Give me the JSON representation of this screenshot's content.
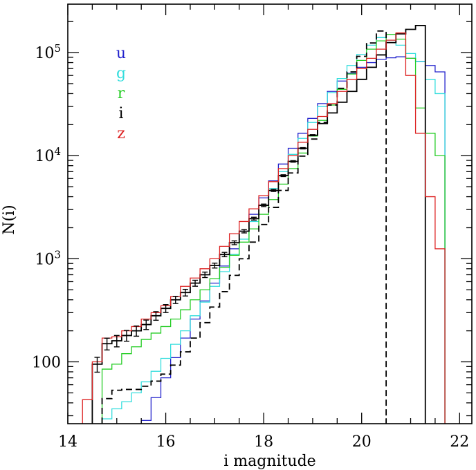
{
  "chart_data": {
    "type": "line",
    "step": true,
    "title": "",
    "xlabel": "i magnitude",
    "ylabel": "N(i)",
    "xlim": [
      14,
      22.25
    ],
    "ylim_log10": [
      1.4,
      5.47
    ],
    "y_scale": "log",
    "x_ticks": [
      {
        "value": 14,
        "label": "14"
      },
      {
        "value": 16,
        "label": "16"
      },
      {
        "value": 18,
        "label": "18"
      },
      {
        "value": 20,
        "label": "20"
      },
      {
        "value": 22,
        "label": "22"
      }
    ],
    "y_ticks": [
      {
        "value": 100,
        "label": "100",
        "exp": ""
      },
      {
        "value": 1000,
        "label": "10",
        "exp": "3"
      },
      {
        "value": 10000,
        "label": "10",
        "exp": "4"
      },
      {
        "value": 100000,
        "label": "10",
        "exp": "5"
      }
    ],
    "bin_width": 0.2,
    "bin_start": 14.3,
    "legend": [
      {
        "label": "u",
        "color": "#2222cc"
      },
      {
        "label": "g",
        "color": "#33dddd"
      },
      {
        "label": "r",
        "color": "#22cc22"
      },
      {
        "label": "i",
        "color": "#000000"
      },
      {
        "label": "z",
        "color": "#dd2222"
      }
    ],
    "series": [
      {
        "name": "u",
        "color": "#2222cc",
        "dash": false,
        "values": [
          null,
          null,
          null,
          null,
          20,
          24,
          27,
          45,
          70,
          110,
          170,
          260,
          390,
          580,
          850,
          1250,
          1850,
          2700,
          3900,
          5700,
          8300,
          11800,
          16500,
          23000,
          32000,
          42000,
          53000,
          63000,
          72000,
          80000,
          86000,
          89000,
          91000,
          88000,
          82000,
          75000,
          65000
        ]
      },
      {
        "name": "g",
        "color": "#33dddd",
        "dash": false,
        "values": [
          null,
          null,
          28,
          35,
          41,
          50,
          64,
          81,
          108,
          148,
          200,
          280,
          380,
          540,
          750,
          1100,
          1550,
          2300,
          3300,
          4800,
          7000,
          10300,
          14700,
          21000,
          30000,
          41000,
          56000,
          75000,
          96000,
          118000,
          140000,
          132000,
          118000,
          98000,
          82000,
          55000,
          40000
        ]
      },
      {
        "name": "r",
        "color": "#22cc22",
        "dash": false,
        "values": [
          null,
          null,
          85,
          95,
          120,
          140,
          165,
          190,
          220,
          260,
          320,
          400,
          500,
          640,
          820,
          1080,
          1450,
          1950,
          2700,
          3750,
          5300,
          7500,
          10600,
          15500,
          22000,
          31000,
          44000,
          62000,
          84000,
          108000,
          130000,
          150000,
          135000,
          88000,
          29000,
          16500,
          10000
        ]
      },
      {
        "name": "i",
        "color": "#000000",
        "dash": true,
        "values": [
          null,
          null,
          44,
          53,
          54,
          54,
          58,
          65,
          76,
          93,
          125,
          170,
          240,
          340,
          480,
          690,
          1000,
          1450,
          2150,
          3150,
          4600,
          6800,
          9900,
          14500,
          21000,
          31000,
          45000,
          65000,
          92000,
          124000,
          162000,
          null,
          null,
          null,
          null,
          null,
          null
        ]
      },
      {
        "name": "i",
        "color": "#000000",
        "dash": false,
        "values": [
          null,
          95,
          150,
          160,
          180,
          200,
          230,
          280,
          330,
          400,
          470,
          580,
          700,
          860,
          1100,
          1430,
          1850,
          2450,
          3300,
          4600,
          6400,
          8800,
          11800,
          15800,
          20500,
          26000,
          33000,
          42000,
          55000,
          72000,
          95000,
          125000,
          152000,
          168000,
          183000,
          null,
          null
        ]
      },
      {
        "name": "z",
        "color": "#dd2222",
        "dash": false,
        "values": [
          43,
          100,
          170,
          175,
          200,
          220,
          260,
          300,
          350,
          430,
          540,
          650,
          800,
          1000,
          1320,
          1750,
          2300,
          3050,
          4100,
          5600,
          7500,
          10000,
          13500,
          18000,
          24000,
          32000,
          42000,
          55000,
          70000,
          88000,
          108000,
          132000,
          155000,
          60000,
          16500,
          4000,
          1250
        ]
      }
    ],
    "error_bar_bins": [
      1,
      2,
      3,
      4,
      5,
      6,
      7,
      8,
      9,
      10,
      11,
      12,
      13,
      14,
      15,
      16,
      17,
      18,
      19,
      20,
      21,
      22,
      23
    ]
  }
}
